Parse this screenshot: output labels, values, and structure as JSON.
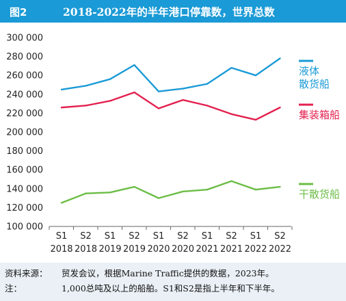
{
  "header": {
    "figure_label": "图2",
    "title": "2018-2022年的半年港口停靠数，世界总数"
  },
  "chart_data": {
    "type": "line",
    "title": "2018-2022年的半年港口停靠数，世界总数",
    "categories": [
      {
        "period": "S1",
        "year": "2018"
      },
      {
        "period": "S2",
        "year": "2018"
      },
      {
        "period": "S1",
        "year": "2019"
      },
      {
        "period": "S2",
        "year": "2019"
      },
      {
        "period": "S1",
        "year": "2020"
      },
      {
        "period": "S2",
        "year": "2020"
      },
      {
        "period": "S1",
        "year": "2021"
      },
      {
        "period": "S2",
        "year": "2021"
      },
      {
        "period": "S1",
        "year": "2022"
      },
      {
        "period": "S2",
        "year": "2022"
      }
    ],
    "ylim": [
      100000,
      300000
    ],
    "yticks": [
      "100 000",
      "120 000",
      "140 000",
      "160 000",
      "180 000",
      "200 000",
      "220 000",
      "240 000",
      "260 000",
      "280 000",
      "300 000"
    ],
    "grid": false,
    "legend_position": "right",
    "series": [
      {
        "name_lines": [
          "液体",
          "散货船"
        ],
        "color": "#1a9ad6",
        "values": [
          245000,
          249000,
          256000,
          271000,
          243000,
          246000,
          251000,
          268000,
          260000,
          278000
        ]
      },
      {
        "name_lines": [
          "集装箱船"
        ],
        "color": "#e3204f",
        "values": [
          226000,
          228000,
          233000,
          242000,
          225000,
          234000,
          228000,
          219000,
          213000,
          226000
        ]
      },
      {
        "name_lines": [
          "干散货船"
        ],
        "color": "#6cbd45",
        "values": [
          125000,
          135000,
          136000,
          142000,
          130000,
          137000,
          139000,
          148000,
          139000,
          142000
        ]
      }
    ]
  },
  "footer": {
    "source_label": "资料来源：",
    "source_text": "贸发会议，根据Marine Traffic提供的数据，2023年。",
    "note_label": "注：",
    "note_text": "1,000总吨及以上的船舶。S1和S2是指上半年和下半年。"
  }
}
